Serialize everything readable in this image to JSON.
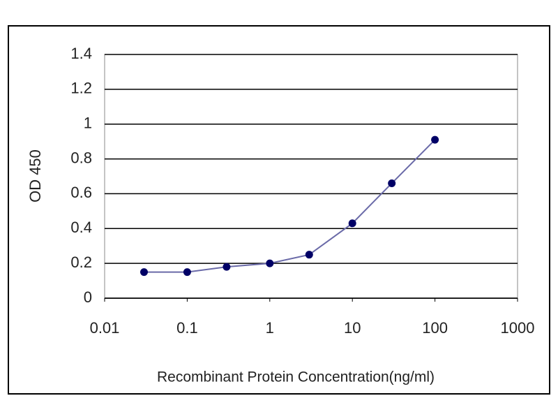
{
  "chart_data": {
    "type": "line",
    "x_label": "Recombinant Protein Concentration(ng/ml)",
    "y_label": "OD 450",
    "x": [
      0.03,
      0.1,
      0.3,
      1,
      3,
      10,
      30,
      100
    ],
    "series": [
      {
        "color": "#000066",
        "line_color": "#6a6aa8",
        "values": [
          0.15,
          0.15,
          0.18,
          0.2,
          0.25,
          0.43,
          0.66,
          0.91
        ]
      }
    ],
    "x_log": true,
    "xlim": [
      0.01,
      1000
    ],
    "xticks": [
      0.01,
      0.1,
      1,
      10,
      100,
      1000
    ],
    "ylim": [
      0,
      1.4
    ],
    "yticks": [
      0,
      0.2,
      0.4,
      0.6,
      0.8,
      1,
      1.2,
      1.4
    ],
    "grid": true
  }
}
